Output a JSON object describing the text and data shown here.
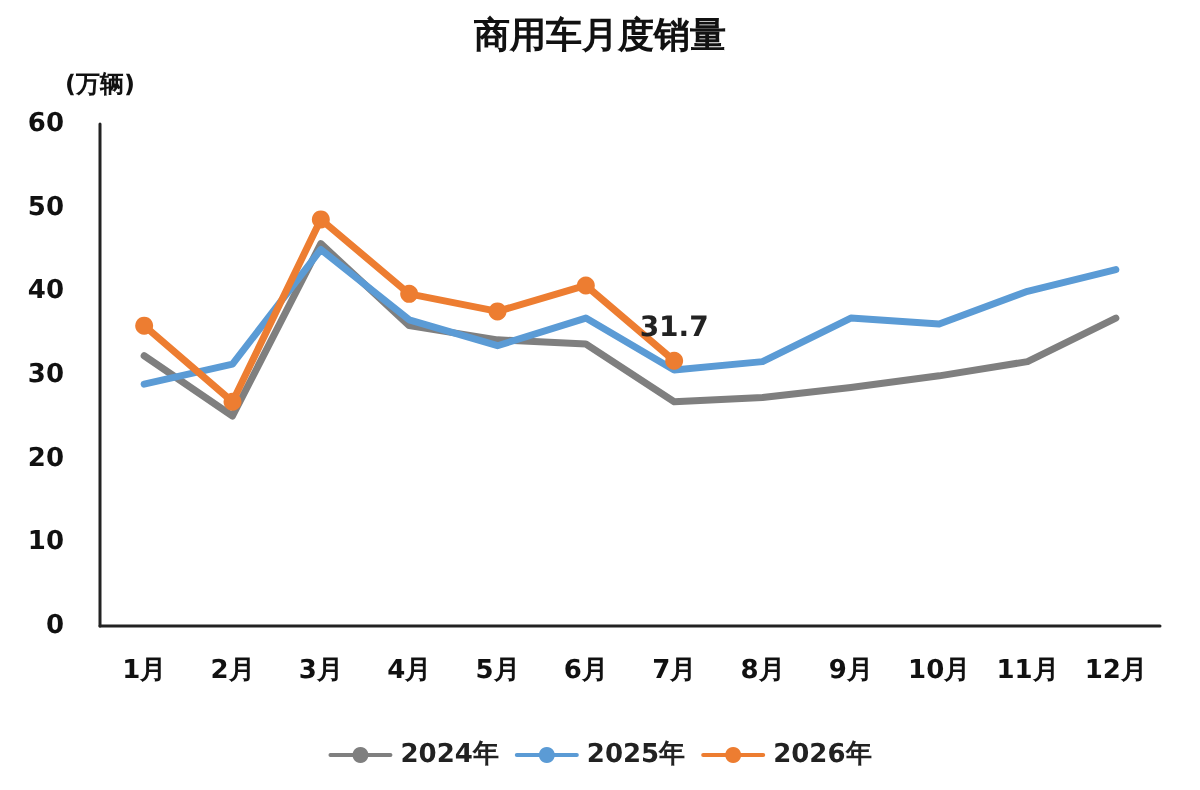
{
  "chart_data": {
    "type": "line",
    "title": "商用车月度销量",
    "ylabel": "(万辆)",
    "categories": [
      "1月",
      "2月",
      "3月",
      "4月",
      "5月",
      "6月",
      "7月",
      "8月",
      "9月",
      "10月",
      "11月",
      "12月"
    ],
    "series": [
      {
        "name": "2024年",
        "color": "#7f7f7f",
        "marker": "none",
        "values": [
          32.3,
          25.1,
          45.7,
          35.9,
          34.2,
          33.7,
          26.8,
          27.3,
          28.5,
          29.9,
          31.6,
          36.8
        ]
      },
      {
        "name": "2025年",
        "color": "#5b9bd5",
        "marker": "none",
        "values": [
          28.9,
          31.3,
          45.0,
          36.6,
          33.5,
          36.8,
          30.6,
          31.6,
          36.8,
          36.1,
          40.0,
          42.6
        ]
      },
      {
        "name": "2026年",
        "color": "#ed7d31",
        "marker": "circle",
        "values": [
          35.9,
          26.8,
          48.6,
          39.7,
          37.6,
          40.7,
          31.7,
          null,
          null,
          null,
          null,
          null
        ],
        "value_labels": [
          null,
          null,
          null,
          null,
          null,
          null,
          "31.7",
          null,
          null,
          null,
          null,
          null
        ]
      }
    ],
    "ylim": [
      0,
      60
    ],
    "yticks": [
      0,
      10,
      20,
      30,
      40,
      50,
      60
    ],
    "grid": false,
    "legend": "bottom",
    "line_style": "solid"
  }
}
